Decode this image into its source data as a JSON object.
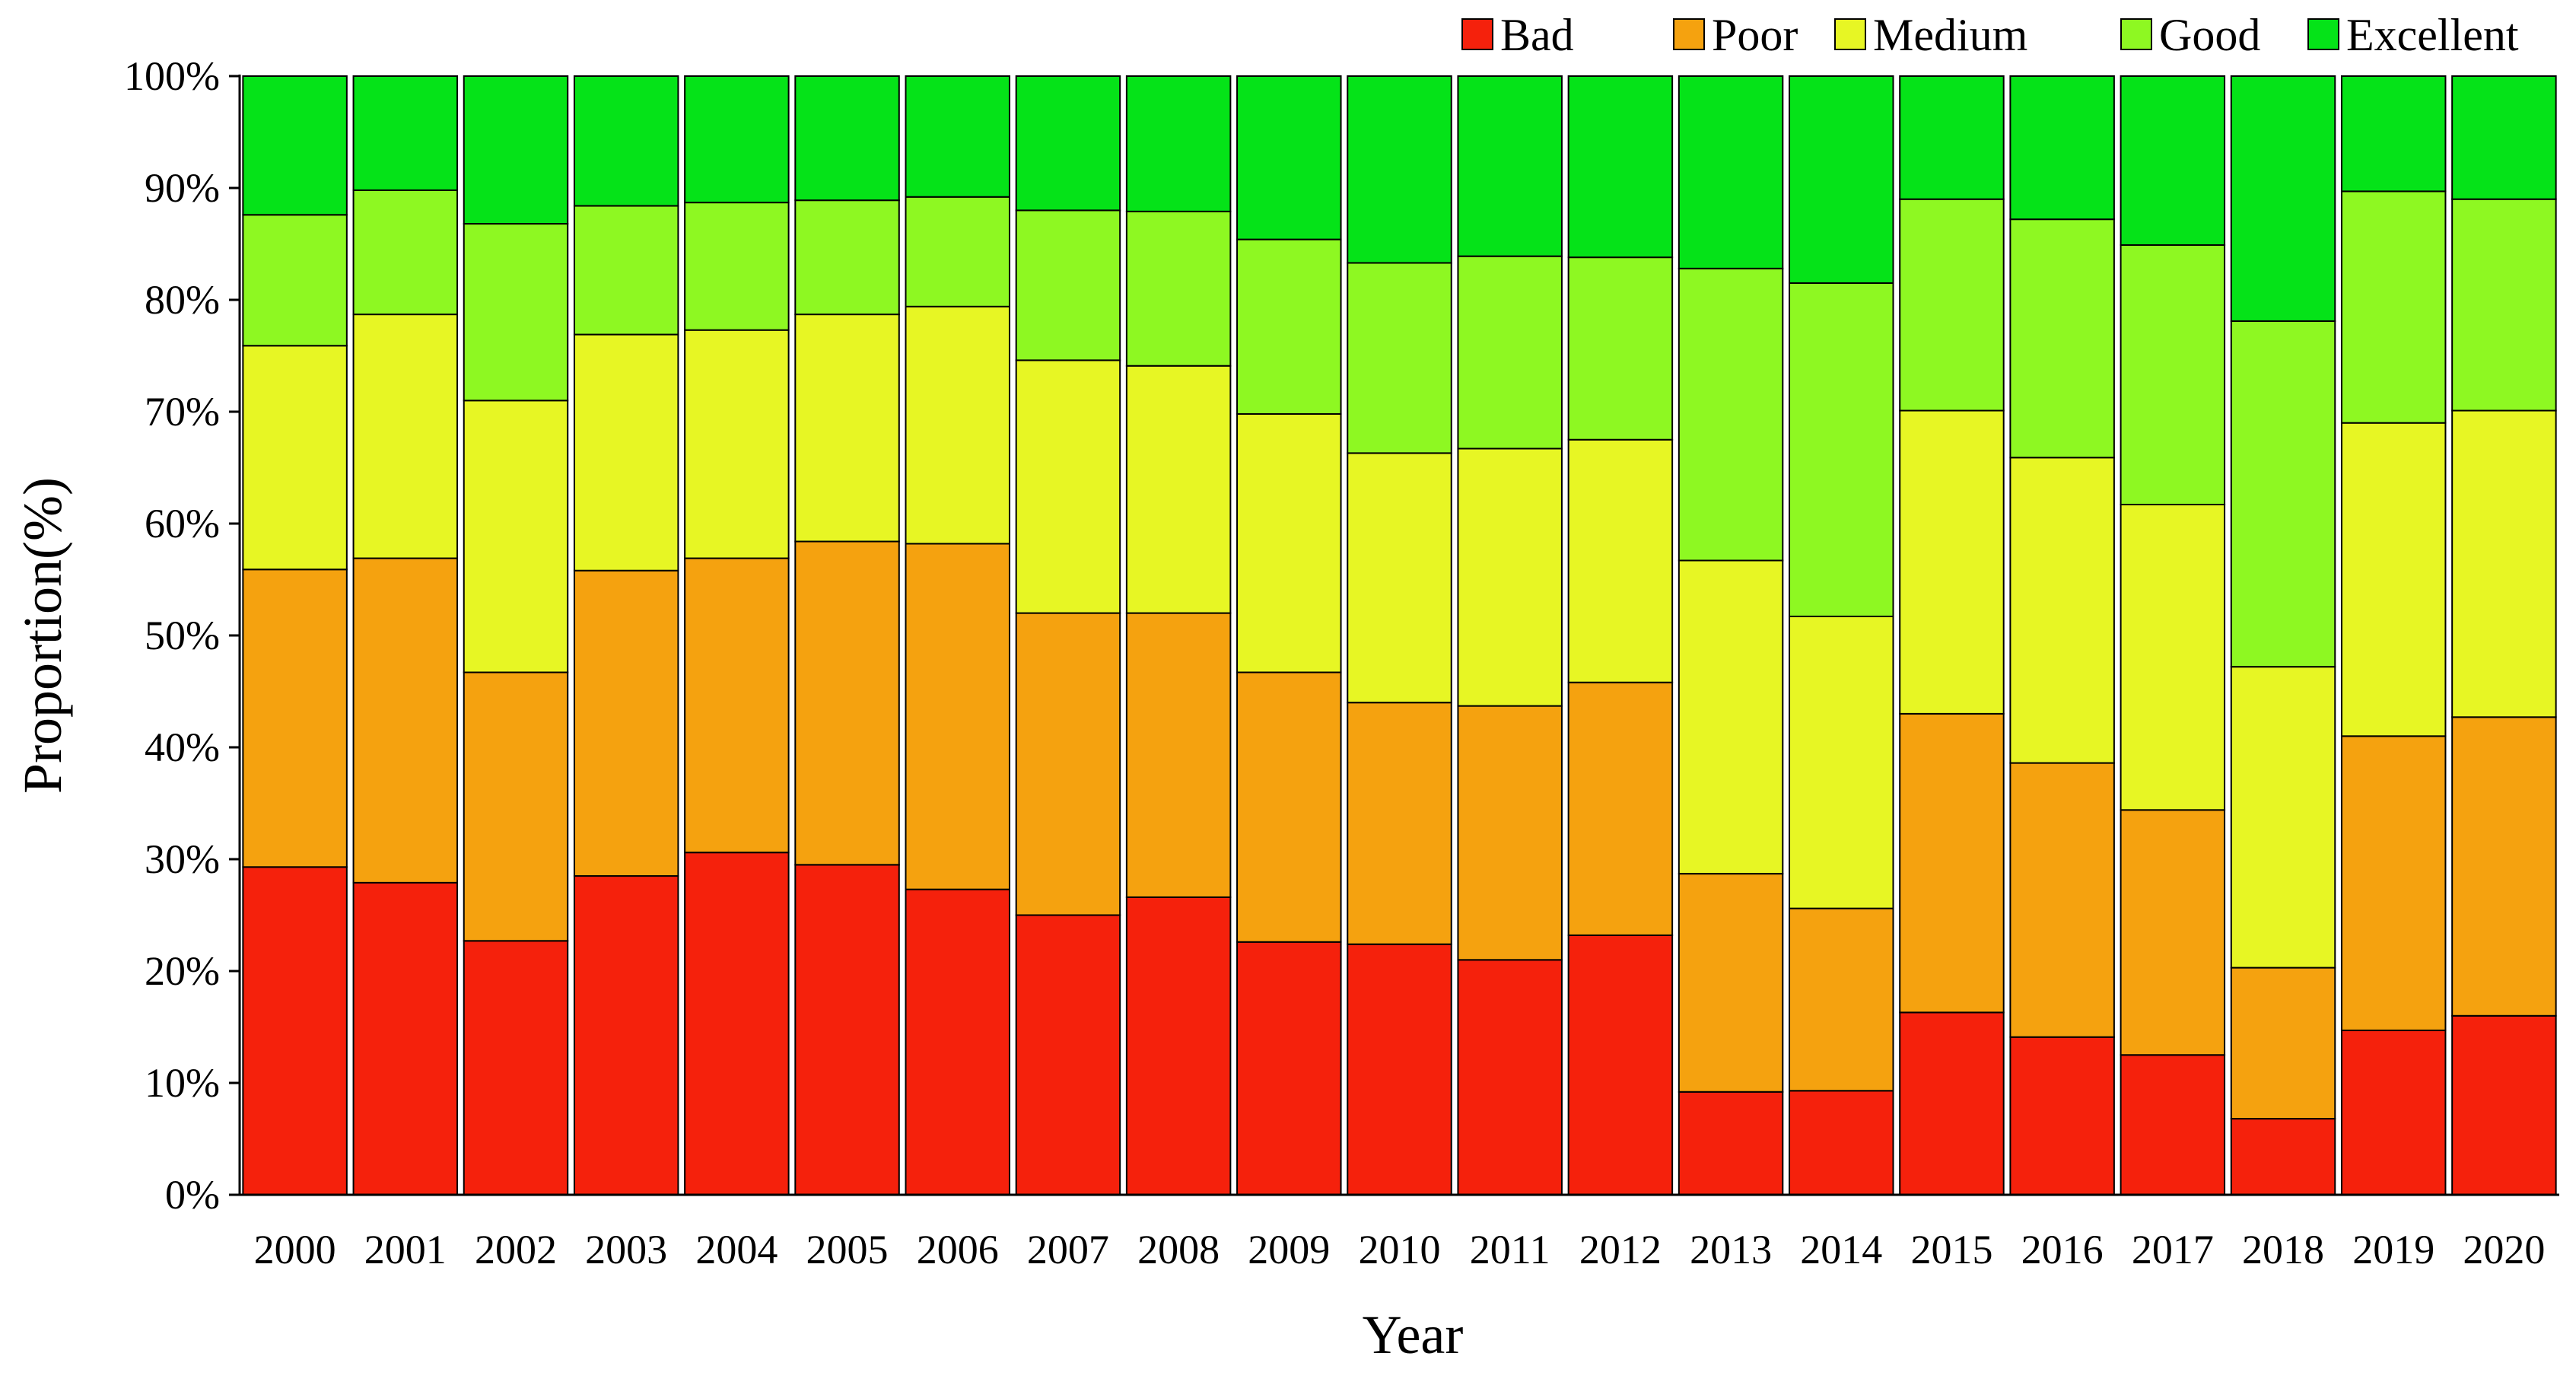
{
  "chart_data": {
    "type": "bar",
    "stacked": true,
    "title": "",
    "xlabel": "Year",
    "ylabel": "Proportion(%)",
    "ylim": [
      0,
      100
    ],
    "y_ticks": [
      0,
      10,
      20,
      30,
      40,
      50,
      60,
      70,
      80,
      90,
      100
    ],
    "y_tick_labels": [
      "0%",
      "10%",
      "20%",
      "30%",
      "40%",
      "50%",
      "60%",
      "70%",
      "80%",
      "90%",
      "100%"
    ],
    "grid": false,
    "legend_position": "top-right",
    "categories": [
      "2000",
      "2001",
      "2002",
      "2003",
      "2004",
      "2005",
      "2006",
      "2007",
      "2008",
      "2009",
      "2010",
      "2011",
      "2012",
      "2013",
      "2014",
      "2015",
      "2016",
      "2017",
      "2018",
      "2019",
      "2020"
    ],
    "series": [
      {
        "name": "Bad",
        "color": "#f5210c",
        "values": [
          29.3,
          27.9,
          22.7,
          28.5,
          30.6,
          29.5,
          27.3,
          25.0,
          26.6,
          22.6,
          22.4,
          21.0,
          23.2,
          9.2,
          9.3,
          16.3,
          14.1,
          12.5,
          6.8,
          14.7,
          16.0
        ]
      },
      {
        "name": "Poor",
        "color": "#f5a20f",
        "values": [
          26.6,
          29.0,
          24.0,
          27.3,
          26.3,
          28.9,
          30.9,
          27.0,
          25.4,
          24.1,
          21.6,
          22.7,
          22.6,
          19.5,
          16.3,
          26.7,
          24.5,
          21.9,
          13.5,
          26.3,
          26.7
        ]
      },
      {
        "name": "Medium",
        "color": "#e7f624",
        "values": [
          20.0,
          21.8,
          24.3,
          21.1,
          20.4,
          20.3,
          21.2,
          22.6,
          22.1,
          23.1,
          22.3,
          23.0,
          21.7,
          28.0,
          26.1,
          27.1,
          27.3,
          27.3,
          26.9,
          28.0,
          27.4
        ]
      },
      {
        "name": "Good",
        "color": "#8ef822",
        "values": [
          11.7,
          11.1,
          15.8,
          11.5,
          11.4,
          10.2,
          9.8,
          13.4,
          13.8,
          15.6,
          17.0,
          17.2,
          16.3,
          26.1,
          29.8,
          18.9,
          21.3,
          23.2,
          30.9,
          20.7,
          18.9
        ]
      },
      {
        "name": "Excellent",
        "color": "#05e318",
        "values": [
          12.4,
          10.2,
          13.2,
          11.6,
          11.3,
          11.1,
          10.8,
          12.0,
          12.1,
          14.6,
          16.7,
          16.1,
          16.2,
          17.2,
          18.5,
          11.0,
          12.8,
          15.1,
          21.9,
          10.3,
          11.0
        ]
      }
    ]
  }
}
